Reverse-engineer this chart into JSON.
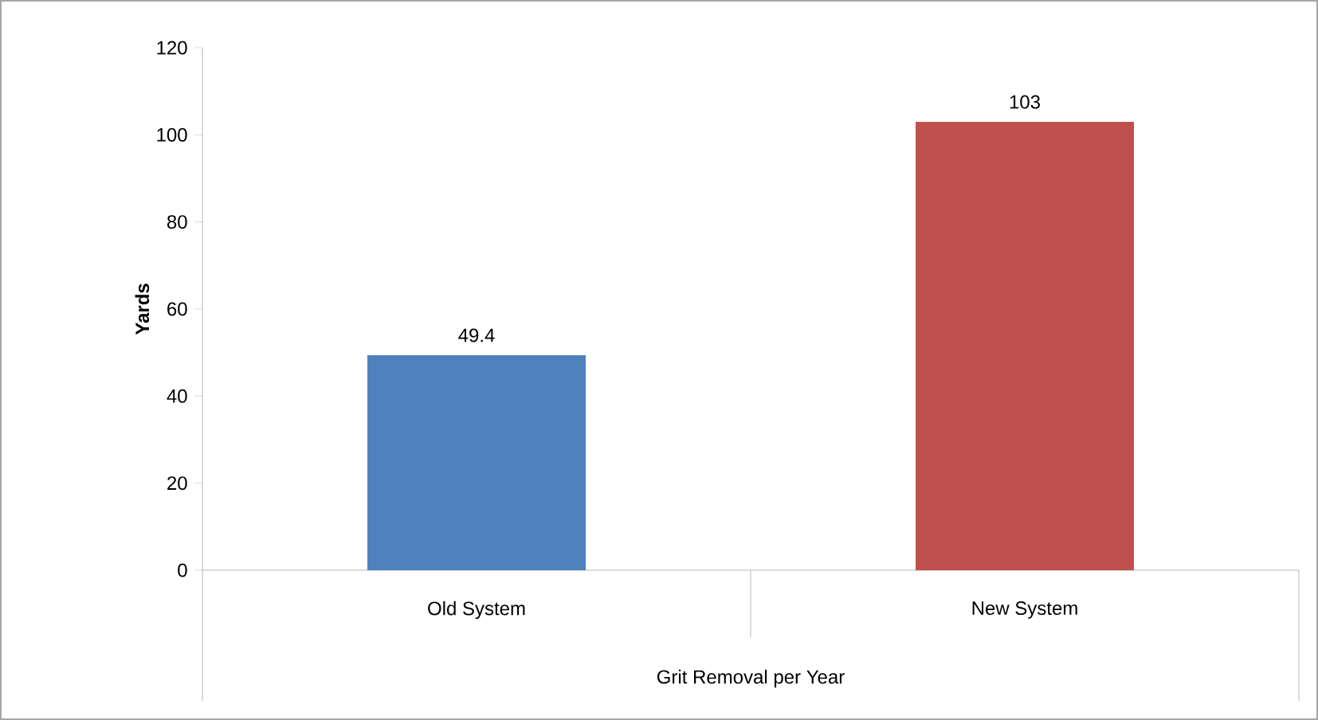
{
  "chart_data": {
    "type": "bar",
    "xlabel": "Grit Removal per Year",
    "ylabel": "Yards",
    "categories": [
      "Old System",
      "New System"
    ],
    "values": [
      49.4,
      103
    ],
    "colors": [
      "#4f81bd",
      "#c0504d"
    ],
    "ylim": [
      0,
      120
    ],
    "yticks": [
      0,
      20,
      40,
      60,
      80,
      100,
      120
    ],
    "data_labels": true,
    "grid": false
  }
}
